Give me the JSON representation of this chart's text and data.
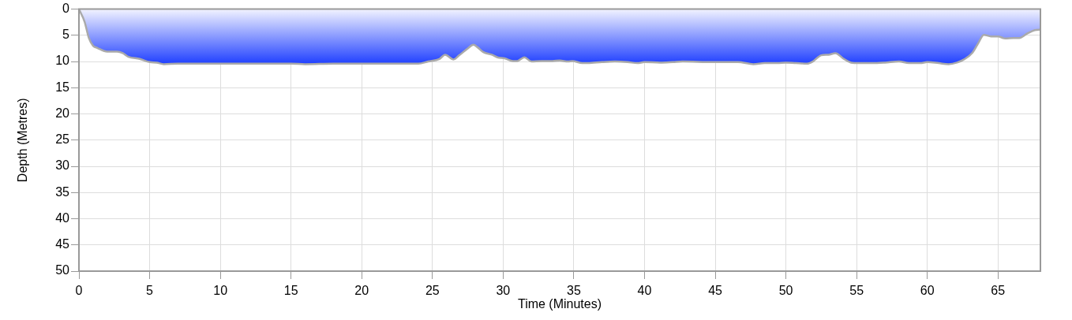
{
  "chart_data": {
    "type": "area",
    "xlabel": "Time (Minutes)",
    "ylabel": "Depth (Metres)",
    "x": [
      0,
      0.4,
      0.7,
      1.0,
      1.3,
      2.0,
      2.7,
      3.1,
      3.5,
      4.3,
      5.0,
      5.5,
      6.0,
      7,
      9,
      12,
      15,
      16,
      18,
      21,
      24,
      24.7,
      25.5,
      25.9,
      26.5,
      26.9,
      27.5,
      27.9,
      28.2,
      28.6,
      29.2,
      29.6,
      30.1,
      30.7,
      31.0,
      31.5,
      32.0,
      32.7,
      33.5,
      34.0,
      34.6,
      34.9,
      35.6,
      36.0,
      37.0,
      37.9,
      38.8,
      39.5,
      40.0,
      41.1,
      42.0,
      42.7,
      44.8,
      46.6,
      47.7,
      48.5,
      49.4,
      50.0,
      50.7,
      51.5,
      51.9,
      52.5,
      53.0,
      53.5,
      54.1,
      54.6,
      55.2,
      56.1,
      57.0,
      58.0,
      58.7,
      59.5,
      60.0,
      60.8,
      61.5,
      62.1,
      62.6,
      63.2,
      63.6,
      64.0,
      64.5,
      65.0,
      65.5,
      66.1,
      66.5,
      67.1,
      67.6,
      68
    ],
    "values": [
      0,
      2.4,
      5.5,
      7.0,
      7.4,
      8.1,
      8.1,
      8.4,
      9.1,
      9.5,
      10.1,
      10.2,
      10.5,
      10.4,
      10.4,
      10.4,
      10.4,
      10.5,
      10.4,
      10.4,
      10.4,
      10.0,
      9.5,
      8.7,
      9.6,
      8.8,
      7.5,
      6.8,
      7.3,
      8.2,
      8.7,
      9.2,
      9.4,
      9.9,
      9.9,
      9.2,
      10.0,
      9.9,
      9.9,
      9.8,
      10.0,
      9.9,
      10.3,
      10.3,
      10.1,
      10.0,
      10.1,
      10.3,
      10.1,
      10.2,
      10.1,
      10.0,
      10.1,
      10.1,
      10.5,
      10.3,
      10.3,
      10.2,
      10.3,
      10.4,
      10.0,
      8.8,
      8.7,
      8.4,
      9.5,
      10.2,
      10.3,
      10.3,
      10.2,
      10.0,
      10.3,
      10.3,
      10.1,
      10.3,
      10.5,
      10.2,
      9.6,
      8.3,
      6.5,
      4.9,
      5.2,
      5.2,
      5.6,
      5.5,
      5.5,
      4.6,
      4.0,
      3.9
    ],
    "color": "#1f3fff",
    "xlim": [
      0,
      68
    ],
    "xticks": [
      0,
      5,
      10,
      15,
      20,
      25,
      30,
      35,
      40,
      45,
      50,
      55,
      60,
      65
    ],
    "ylim": [
      50,
      0
    ],
    "yticks": [
      0,
      5,
      10,
      15,
      20,
      25,
      30,
      35,
      40,
      45,
      50
    ],
    "grid": true
  }
}
